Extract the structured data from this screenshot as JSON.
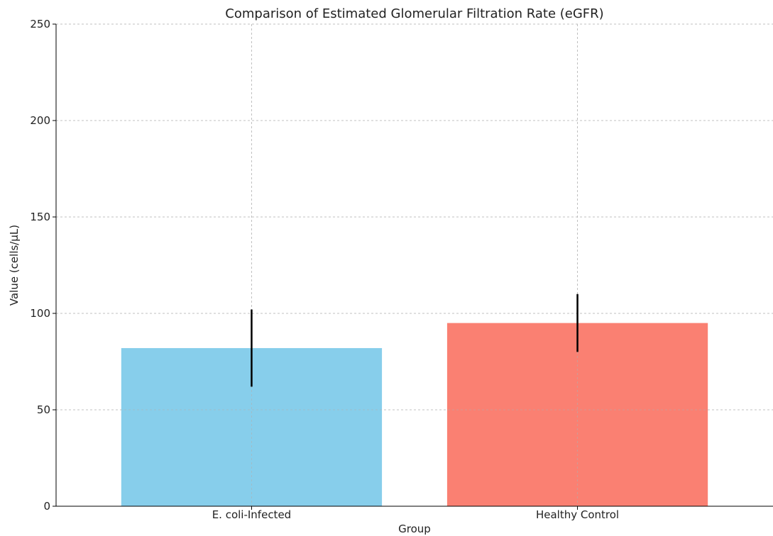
{
  "chart_data": {
    "type": "bar",
    "title": "Comparison of Estimated Glomerular Filtration Rate (eGFR)",
    "xlabel": "Group",
    "ylabel": "Value (cells/μL)",
    "categories": [
      "E. coli-Infected",
      "Healthy Control"
    ],
    "values": [
      82,
      95
    ],
    "errors": [
      20,
      15
    ],
    "colors": [
      "#87ceeb",
      "#fa8072"
    ],
    "ylim": [
      0,
      250
    ],
    "yticks": [
      0,
      50,
      100,
      150,
      200,
      250
    ],
    "grid": true,
    "legend": "none"
  }
}
